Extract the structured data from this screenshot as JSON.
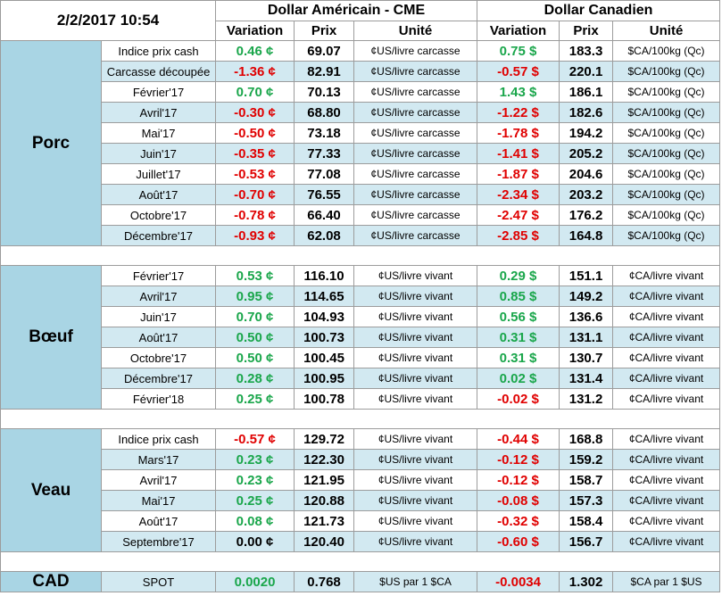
{
  "header": {
    "date": "2/2/2017 10:54",
    "usd_group": "Dollar Américain - CME",
    "cad_group": "Dollar Canadien",
    "col_variation": "Variation",
    "col_prix": "Prix",
    "col_unite": "Unité"
  },
  "sections": {
    "porc": {
      "name": "Porc",
      "rows": [
        {
          "label": "Indice prix cash",
          "usd_var": "0.46 ¢",
          "usd_sign": "pos",
          "usd_price": "69.07",
          "usd_unit": "¢US/livre carcasse",
          "cad_var": "0.75 $",
          "cad_sign": "pos",
          "cad_price": "183.3",
          "cad_unit": "$CA/100kg (Qc)"
        },
        {
          "label": "Carcasse découpée",
          "usd_var": "-1.36 ¢",
          "usd_sign": "neg",
          "usd_price": "82.91",
          "usd_unit": "¢US/livre carcasse",
          "cad_var": "-0.57 $",
          "cad_sign": "neg",
          "cad_price": "220.1",
          "cad_unit": "$CA/100kg (Qc)"
        },
        {
          "label": "Février'17",
          "usd_var": "0.70 ¢",
          "usd_sign": "pos",
          "usd_price": "70.13",
          "usd_unit": "¢US/livre carcasse",
          "cad_var": "1.43 $",
          "cad_sign": "pos",
          "cad_price": "186.1",
          "cad_unit": "$CA/100kg (Qc)"
        },
        {
          "label": "Avril'17",
          "usd_var": "-0.30 ¢",
          "usd_sign": "neg",
          "usd_price": "68.80",
          "usd_unit": "¢US/livre carcasse",
          "cad_var": "-1.22 $",
          "cad_sign": "neg",
          "cad_price": "182.6",
          "cad_unit": "$CA/100kg (Qc)"
        },
        {
          "label": "Mai'17",
          "usd_var": "-0.50 ¢",
          "usd_sign": "neg",
          "usd_price": "73.18",
          "usd_unit": "¢US/livre carcasse",
          "cad_var": "-1.78 $",
          "cad_sign": "neg",
          "cad_price": "194.2",
          "cad_unit": "$CA/100kg (Qc)"
        },
        {
          "label": "Juin'17",
          "usd_var": "-0.35 ¢",
          "usd_sign": "neg",
          "usd_price": "77.33",
          "usd_unit": "¢US/livre carcasse",
          "cad_var": "-1.41 $",
          "cad_sign": "neg",
          "cad_price": "205.2",
          "cad_unit": "$CA/100kg (Qc)"
        },
        {
          "label": "Juillet'17",
          "usd_var": "-0.53 ¢",
          "usd_sign": "neg",
          "usd_price": "77.08",
          "usd_unit": "¢US/livre carcasse",
          "cad_var": "-1.87 $",
          "cad_sign": "neg",
          "cad_price": "204.6",
          "cad_unit": "$CA/100kg (Qc)"
        },
        {
          "label": "Août'17",
          "usd_var": "-0.70 ¢",
          "usd_sign": "neg",
          "usd_price": "76.55",
          "usd_unit": "¢US/livre carcasse",
          "cad_var": "-2.34 $",
          "cad_sign": "neg",
          "cad_price": "203.2",
          "cad_unit": "$CA/100kg (Qc)"
        },
        {
          "label": "Octobre'17",
          "usd_var": "-0.78 ¢",
          "usd_sign": "neg",
          "usd_price": "66.40",
          "usd_unit": "¢US/livre carcasse",
          "cad_var": "-2.47 $",
          "cad_sign": "neg",
          "cad_price": "176.2",
          "cad_unit": "$CA/100kg (Qc)"
        },
        {
          "label": "Décembre'17",
          "usd_var": "-0.93 ¢",
          "usd_sign": "neg",
          "usd_price": "62.08",
          "usd_unit": "¢US/livre carcasse",
          "cad_var": "-2.85 $",
          "cad_sign": "neg",
          "cad_price": "164.8",
          "cad_unit": "$CA/100kg (Qc)"
        }
      ]
    },
    "boeuf": {
      "name": "Bœuf",
      "rows": [
        {
          "label": "Février'17",
          "usd_var": "0.53 ¢",
          "usd_sign": "pos",
          "usd_price": "116.10",
          "usd_unit": "¢US/livre vivant",
          "cad_var": "0.29 $",
          "cad_sign": "pos",
          "cad_price": "151.1",
          "cad_unit": "¢CA/livre vivant"
        },
        {
          "label": "Avril'17",
          "usd_var": "0.95 ¢",
          "usd_sign": "pos",
          "usd_price": "114.65",
          "usd_unit": "¢US/livre vivant",
          "cad_var": "0.85 $",
          "cad_sign": "pos",
          "cad_price": "149.2",
          "cad_unit": "¢CA/livre vivant"
        },
        {
          "label": "Juin'17",
          "usd_var": "0.70 ¢",
          "usd_sign": "pos",
          "usd_price": "104.93",
          "usd_unit": "¢US/livre vivant",
          "cad_var": "0.56 $",
          "cad_sign": "pos",
          "cad_price": "136.6",
          "cad_unit": "¢CA/livre vivant"
        },
        {
          "label": "Août'17",
          "usd_var": "0.50 ¢",
          "usd_sign": "pos",
          "usd_price": "100.73",
          "usd_unit": "¢US/livre vivant",
          "cad_var": "0.31 $",
          "cad_sign": "pos",
          "cad_price": "131.1",
          "cad_unit": "¢CA/livre vivant"
        },
        {
          "label": "Octobre'17",
          "usd_var": "0.50 ¢",
          "usd_sign": "pos",
          "usd_price": "100.45",
          "usd_unit": "¢US/livre vivant",
          "cad_var": "0.31 $",
          "cad_sign": "pos",
          "cad_price": "130.7",
          "cad_unit": "¢CA/livre vivant"
        },
        {
          "label": "Décembre'17",
          "usd_var": "0.28 ¢",
          "usd_sign": "pos",
          "usd_price": "100.95",
          "usd_unit": "¢US/livre vivant",
          "cad_var": "0.02 $",
          "cad_sign": "pos",
          "cad_price": "131.4",
          "cad_unit": "¢CA/livre vivant"
        },
        {
          "label": "Février'18",
          "usd_var": "0.25 ¢",
          "usd_sign": "pos",
          "usd_price": "100.78",
          "usd_unit": "¢US/livre vivant",
          "cad_var": "-0.02 $",
          "cad_sign": "neg",
          "cad_price": "131.2",
          "cad_unit": "¢CA/livre vivant"
        }
      ]
    },
    "veau": {
      "name": "Veau",
      "rows": [
        {
          "label": "Indice prix cash",
          "usd_var": "-0.57 ¢",
          "usd_sign": "neg",
          "usd_price": "129.72",
          "usd_unit": "¢US/livre vivant",
          "cad_var": "-0.44 $",
          "cad_sign": "neg",
          "cad_price": "168.8",
          "cad_unit": "¢CA/livre vivant"
        },
        {
          "label": "Mars'17",
          "usd_var": "0.23 ¢",
          "usd_sign": "pos",
          "usd_price": "122.30",
          "usd_unit": "¢US/livre vivant",
          "cad_var": "-0.12 $",
          "cad_sign": "neg",
          "cad_price": "159.2",
          "cad_unit": "¢CA/livre vivant"
        },
        {
          "label": "Avril'17",
          "usd_var": "0.23 ¢",
          "usd_sign": "pos",
          "usd_price": "121.95",
          "usd_unit": "¢US/livre vivant",
          "cad_var": "-0.12 $",
          "cad_sign": "neg",
          "cad_price": "158.7",
          "cad_unit": "¢CA/livre vivant"
        },
        {
          "label": "Mai'17",
          "usd_var": "0.25 ¢",
          "usd_sign": "pos",
          "usd_price": "120.88",
          "usd_unit": "¢US/livre vivant",
          "cad_var": "-0.08 $",
          "cad_sign": "neg",
          "cad_price": "157.3",
          "cad_unit": "¢CA/livre vivant"
        },
        {
          "label": "Août'17",
          "usd_var": "0.08 ¢",
          "usd_sign": "pos",
          "usd_price": "121.73",
          "usd_unit": "¢US/livre vivant",
          "cad_var": "-0.32 $",
          "cad_sign": "neg",
          "cad_price": "158.4",
          "cad_unit": "¢CA/livre vivant"
        },
        {
          "label": "Septembre'17",
          "usd_var": "0.00 ¢",
          "usd_sign": "zero",
          "usd_price": "120.40",
          "usd_unit": "¢US/livre vivant",
          "cad_var": "-0.60 $",
          "cad_sign": "neg",
          "cad_price": "156.7",
          "cad_unit": "¢CA/livre vivant"
        }
      ]
    }
  },
  "cad": {
    "name": "CAD",
    "label": "SPOT",
    "usd_var": "0.0020",
    "usd_sign": "pos",
    "usd_price": "0.768",
    "usd_unit": "$US par 1 $CA",
    "cad_var": "-0.0034",
    "cad_sign": "neg",
    "cad_price": "1.302",
    "cad_unit": "$CA par 1 $US"
  },
  "colors": {
    "category_bg": "#a9d5e4",
    "alt_row_bg": "#d2e9f1",
    "positive": "#1aa64b",
    "negative": "#e00000"
  }
}
